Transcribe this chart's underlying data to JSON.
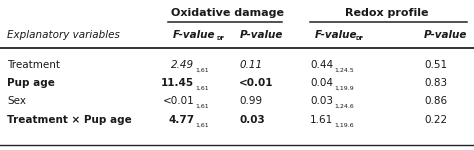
{
  "title_ox": "Oxidative damage",
  "title_redox": "Redox profile",
  "text_color": "#1a1a1a",
  "line_color": "#222222",
  "fig_w": 4.74,
  "fig_h": 1.5,
  "dpi": 100,
  "col_x": {
    "label": 0.015,
    "ox_f": 0.365,
    "ox_p": 0.505,
    "rdx_f": 0.665,
    "rdx_p": 0.895
  },
  "rows": [
    {
      "label": "Treatment",
      "bold_label": false,
      "ox_f": "2.49",
      "ox_f_sub": "1,61",
      "ox_f_italic": true,
      "ox_p": "0.11",
      "ox_p_bold": false,
      "ox_p_italic": true,
      "rdx_f": "0.44",
      "rdx_f_sub": "1,24.5",
      "rdx_p": "0.51",
      "rdx_p_bold": false
    },
    {
      "label": "Pup age",
      "bold_label": true,
      "ox_f": "11.45",
      "ox_f_sub": "1,61",
      "ox_f_italic": false,
      "ox_p": "<0.01",
      "ox_p_bold": true,
      "ox_p_italic": false,
      "rdx_f": "0.04",
      "rdx_f_sub": "1,19.9",
      "rdx_p": "0.83",
      "rdx_p_bold": false
    },
    {
      "label": "Sex",
      "bold_label": false,
      "ox_f": "<0.01",
      "ox_f_sub": "1,61",
      "ox_f_italic": false,
      "ox_p": "0.99",
      "ox_p_bold": false,
      "ox_p_italic": false,
      "rdx_f": "0.03",
      "rdx_f_sub": "1,24.6",
      "rdx_p": "0.86",
      "rdx_p_bold": false
    },
    {
      "label": "Treatment × Pup age",
      "bold_label": true,
      "ox_f": "4.77",
      "ox_f_sub": "1,61",
      "ox_f_italic": false,
      "ox_p": "0.03",
      "ox_p_bold": true,
      "ox_p_italic": false,
      "rdx_f": "1.61",
      "rdx_f_sub": "1,19.6",
      "rdx_p": "0.22",
      "rdx_p_bold": false
    }
  ]
}
